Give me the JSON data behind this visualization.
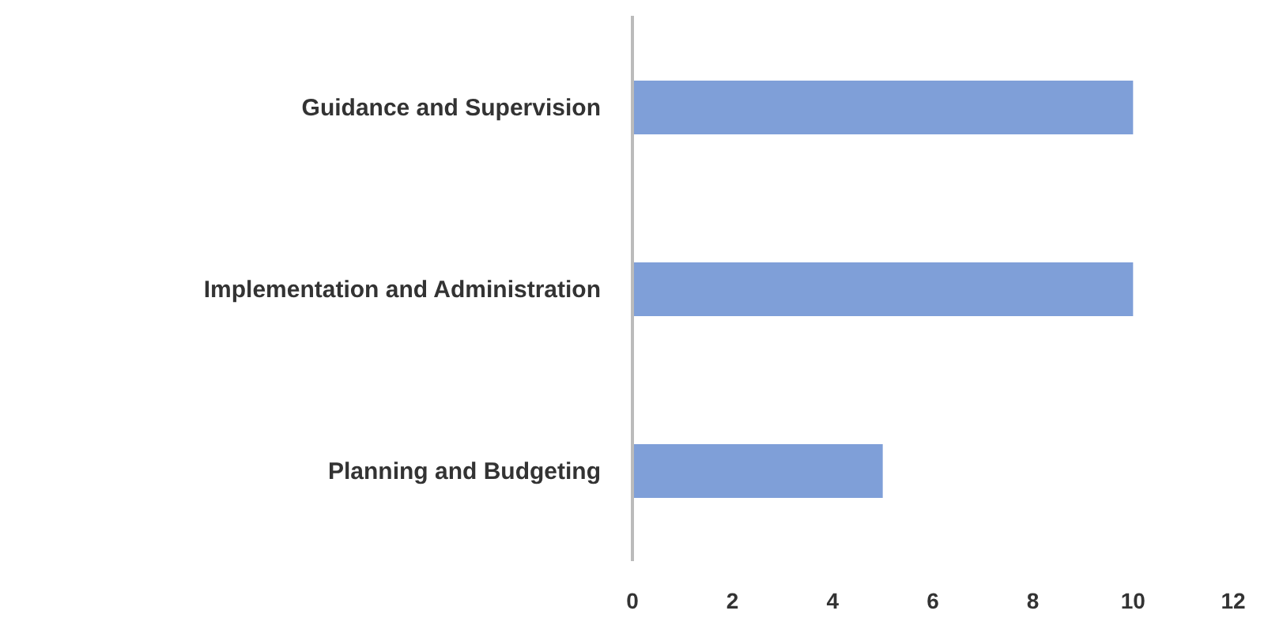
{
  "chart_data": {
    "type": "bar",
    "orientation": "horizontal",
    "categories": [
      "Guidance and Supervision",
      "Implementation and Administration",
      "Planning and Budgeting"
    ],
    "values": [
      10,
      10,
      5
    ],
    "color": "#7f9fd8",
    "xlim": [
      0,
      12
    ],
    "xticks": [
      0,
      2,
      4,
      6,
      8,
      10,
      12
    ],
    "grid": false,
    "legend": false
  }
}
